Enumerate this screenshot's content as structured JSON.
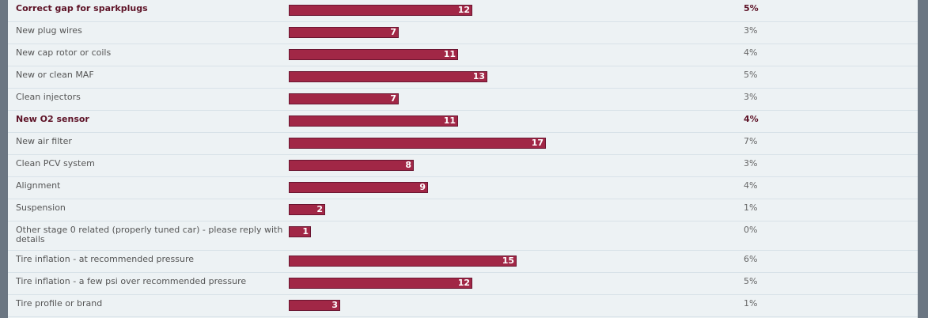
{
  "chart_data": {
    "type": "bar",
    "orientation": "horizontal",
    "bar_color": "#a12746",
    "categories": [
      "Correct gap for sparkplugs",
      "New plug wires",
      "New cap rotor or coils",
      "New or clean MAF",
      "Clean injectors",
      "New O2 sensor",
      "New air filter",
      "Clean PCV system",
      "Alignment",
      "Suspension",
      "Other stage 0 related (properly tuned car) - please reply with details",
      "Tire inflation - at recommended pressure",
      "Tire inflation - a few psi over recommended pressure",
      "Tire profile or brand"
    ],
    "values": [
      12,
      7,
      11,
      13,
      7,
      11,
      17,
      8,
      9,
      2,
      1,
      15,
      12,
      3
    ],
    "percents": [
      "5%",
      "3%",
      "4%",
      "5%",
      "3%",
      "4%",
      "7%",
      "3%",
      "4%",
      "1%",
      "0%",
      "6%",
      "5%",
      "1%"
    ],
    "bold": [
      true,
      false,
      false,
      false,
      false,
      true,
      false,
      false,
      false,
      false,
      false,
      false,
      false,
      false
    ]
  }
}
